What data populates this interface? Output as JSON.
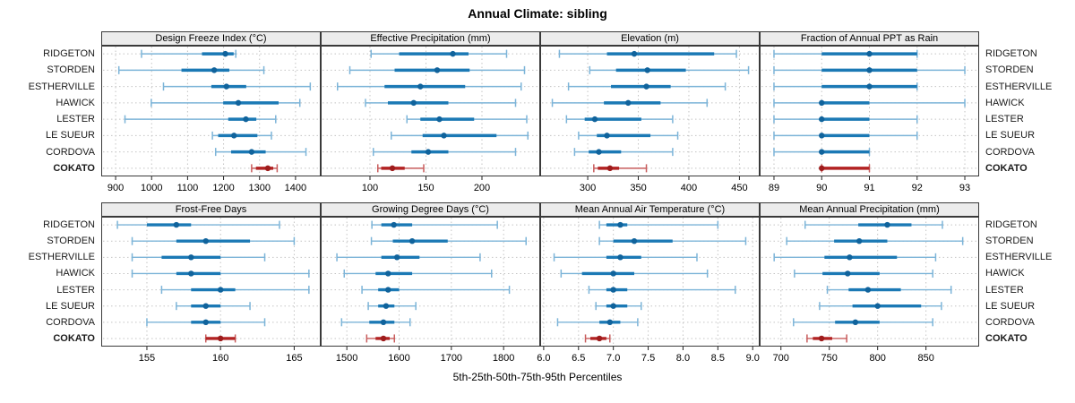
{
  "title": "Annual Climate: sibling",
  "caption": "5th-25th-50th-75th-95th Percentiles",
  "stations": [
    "RIDGETON",
    "STORDEN",
    "ESTHERVILLE",
    "HAWICK",
    "LESTER",
    "LE SUEUR",
    "CORDOVA",
    "COKATO"
  ],
  "highlight_station": "COKATO",
  "colors": {
    "blue_outer_line": "#7cb4d8",
    "blue_iqr_bar": "#1b79b5",
    "blue_median_dot": "#10639c",
    "red_outer_line": "#c85c5c",
    "red_iqr_bar": "#b22222",
    "red_median_dot": "#9e1c1c",
    "grid": "#c4c4c4",
    "panel_border": "#3a3a3a",
    "header_bg": "#ececec",
    "tick": "#222222"
  },
  "percentile_levels": [
    5,
    25,
    50,
    75,
    95
  ],
  "chart_data": [
    {
      "type": "dotplot-interval",
      "title": "Design Freeze Index (°C)",
      "grid_row": 0,
      "xlim": [
        860,
        1470
      ],
      "ticks": [
        900,
        1000,
        1100,
        1200,
        1300,
        1400
      ],
      "tick_labels": [
        "900",
        "1000",
        "1100",
        "1200",
        "1300",
        "1400"
      ],
      "series": [
        {
          "name": "RIDGETON",
          "values": [
            972,
            1140,
            1205,
            1228,
            1234
          ]
        },
        {
          "name": "STORDEN",
          "values": [
            909,
            1083,
            1174,
            1216,
            1312
          ]
        },
        {
          "name": "ESTHERVILLE",
          "values": [
            1033,
            1166,
            1208,
            1263,
            1441
          ]
        },
        {
          "name": "HAWICK",
          "values": [
            999,
            1199,
            1241,
            1353,
            1412
          ]
        },
        {
          "name": "LESTER",
          "values": [
            926,
            1213,
            1262,
            1291,
            1345
          ]
        },
        {
          "name": "LE SUEUR",
          "values": [
            1169,
            1185,
            1229,
            1294,
            1333
          ]
        },
        {
          "name": "CORDOVA",
          "values": [
            1178,
            1221,
            1278,
            1317,
            1429
          ]
        },
        {
          "name": "COKATO",
          "values": [
            1278,
            1290,
            1323,
            1338,
            1349
          ]
        }
      ]
    },
    {
      "type": "dotplot-interval",
      "title": "Effective Precipitation (mm)",
      "grid_row": 0,
      "xlim": [
        56,
        252
      ],
      "ticks": [
        100,
        150,
        200
      ],
      "tick_labels": [
        "100",
        "150",
        "200"
      ],
      "series": [
        {
          "name": "RIDGETON",
          "values": [
            101,
            126,
            174,
            188,
            222
          ]
        },
        {
          "name": "STORDEN",
          "values": [
            82,
            122,
            160,
            189,
            238
          ]
        },
        {
          "name": "ESTHERVILLE",
          "values": [
            71,
            113,
            145,
            185,
            235
          ]
        },
        {
          "name": "HAWICK",
          "values": [
            96,
            116,
            139,
            170,
            230
          ]
        },
        {
          "name": "LESTER",
          "values": [
            133,
            145,
            162,
            193,
            240
          ]
        },
        {
          "name": "LE SUEUR",
          "values": [
            119,
            147,
            166,
            213,
            241
          ]
        },
        {
          "name": "CORDOVA",
          "values": [
            103,
            137,
            152,
            170,
            230
          ]
        },
        {
          "name": "COKATO",
          "values": [
            107,
            110,
            120,
            131,
            148
          ]
        }
      ]
    },
    {
      "type": "dotplot-interval",
      "title": "Elevation (m)",
      "grid_row": 0,
      "xlim": [
        253,
        470
      ],
      "ticks": [
        300,
        350,
        400,
        450
      ],
      "tick_labels": [
        "300",
        "350",
        "400",
        "450"
      ],
      "series": [
        {
          "name": "RIDGETON",
          "values": [
            272,
            319,
            346,
            425,
            447
          ]
        },
        {
          "name": "STORDEN",
          "values": [
            302,
            328,
            359,
            397,
            459
          ]
        },
        {
          "name": "ESTHERVILLE",
          "values": [
            281,
            323,
            358,
            382,
            436
          ]
        },
        {
          "name": "HAWICK",
          "values": [
            265,
            316,
            340,
            372,
            418
          ]
        },
        {
          "name": "LESTER",
          "values": [
            279,
            297,
            307,
            353,
            384
          ]
        },
        {
          "name": "LE SUEUR",
          "values": [
            291,
            309,
            319,
            362,
            389
          ]
        },
        {
          "name": "CORDOVA",
          "values": [
            287,
            301,
            311,
            333,
            384
          ]
        },
        {
          "name": "COKATO",
          "values": [
            306,
            310,
            322,
            331,
            358
          ]
        }
      ]
    },
    {
      "type": "dotplot-interval",
      "title": "Fraction of Annual PPT as Rain",
      "grid_row": 0,
      "xlim": [
        88.7,
        93.3
      ],
      "ticks": [
        89,
        90,
        91,
        92,
        93
      ],
      "tick_labels": [
        "89",
        "90",
        "91",
        "92",
        "93"
      ],
      "series": [
        {
          "name": "RIDGETON",
          "values": [
            89,
            90,
            91,
            92,
            92
          ]
        },
        {
          "name": "STORDEN",
          "values": [
            89,
            90,
            91,
            92,
            93
          ]
        },
        {
          "name": "ESTHERVILLE",
          "values": [
            89,
            90,
            91,
            92,
            92
          ]
        },
        {
          "name": "HAWICK",
          "values": [
            89,
            90,
            90,
            91,
            93
          ]
        },
        {
          "name": "LESTER",
          "values": [
            89,
            90,
            90,
            91,
            92
          ]
        },
        {
          "name": "LE SUEUR",
          "values": [
            89,
            90,
            90,
            91,
            92
          ]
        },
        {
          "name": "CORDOVA",
          "values": [
            89,
            90,
            90,
            91,
            91
          ]
        },
        {
          "name": "COKATO",
          "values": [
            90,
            90,
            90,
            91,
            91
          ]
        }
      ]
    },
    {
      "type": "dotplot-interval",
      "title": "Frost-Free Days",
      "grid_row": 1,
      "xlim": [
        151.9,
        166.8
      ],
      "ticks": [
        155,
        160,
        165
      ],
      "tick_labels": [
        "155",
        "160",
        "165"
      ],
      "series": [
        {
          "name": "RIDGETON",
          "values": [
            153,
            155,
            157,
            158,
            164
          ]
        },
        {
          "name": "STORDEN",
          "values": [
            154,
            157,
            159,
            162,
            165
          ]
        },
        {
          "name": "ESTHERVILLE",
          "values": [
            154,
            156,
            158,
            160,
            163
          ]
        },
        {
          "name": "HAWICK",
          "values": [
            154,
            157,
            158,
            160,
            166
          ]
        },
        {
          "name": "LESTER",
          "values": [
            156,
            158,
            160,
            161,
            166
          ]
        },
        {
          "name": "LE SUEUR",
          "values": [
            157,
            158,
            159,
            160,
            162
          ]
        },
        {
          "name": "CORDOVA",
          "values": [
            155,
            158,
            159,
            160,
            163
          ]
        },
        {
          "name": "COKATO",
          "values": [
            159,
            159,
            160,
            161,
            161
          ]
        }
      ]
    },
    {
      "type": "dotplot-interval",
      "title": "Growing Degree Days (°C)",
      "grid_row": 1,
      "xlim": [
        1450,
        1870
      ],
      "ticks": [
        1500,
        1600,
        1700,
        1800
      ],
      "tick_labels": [
        "1500",
        "1600",
        "1700",
        "1800"
      ],
      "series": [
        {
          "name": "RIDGETON",
          "values": [
            1548,
            1566,
            1590,
            1625,
            1788
          ]
        },
        {
          "name": "STORDEN",
          "values": [
            1547,
            1588,
            1625,
            1693,
            1843
          ]
        },
        {
          "name": "ESTHERVILLE",
          "values": [
            1481,
            1566,
            1596,
            1639,
            1755
          ]
        },
        {
          "name": "HAWICK",
          "values": [
            1495,
            1555,
            1579,
            1625,
            1777
          ]
        },
        {
          "name": "LESTER",
          "values": [
            1529,
            1560,
            1579,
            1600,
            1811
          ]
        },
        {
          "name": "LE SUEUR",
          "values": [
            1541,
            1560,
            1575,
            1591,
            1632
          ]
        },
        {
          "name": "CORDOVA",
          "values": [
            1490,
            1543,
            1570,
            1591,
            1621
          ]
        },
        {
          "name": "COKATO",
          "values": [
            1538,
            1555,
            1570,
            1582,
            1591
          ]
        }
      ]
    },
    {
      "type": "dotplot-interval",
      "title": "Mean Annual Air Temperature (°C)",
      "grid_row": 1,
      "xlim": [
        5.95,
        9.1
      ],
      "ticks": [
        6.0,
        6.5,
        7.0,
        7.5,
        8.0,
        8.5,
        9.0
      ],
      "tick_labels": [
        "6.0",
        "6.5",
        "7.0",
        "7.5",
        "8.0",
        "8.5",
        "9.0"
      ],
      "series": [
        {
          "name": "RIDGETON",
          "values": [
            6.8,
            6.9,
            7.1,
            7.2,
            8.5
          ]
        },
        {
          "name": "STORDEN",
          "values": [
            6.8,
            7.0,
            7.3,
            7.85,
            8.9
          ]
        },
        {
          "name": "ESTHERVILLE",
          "values": [
            6.15,
            6.9,
            7.1,
            7.4,
            8.2
          ]
        },
        {
          "name": "HAWICK",
          "values": [
            6.25,
            6.55,
            7.0,
            7.3,
            8.35
          ]
        },
        {
          "name": "LESTER",
          "values": [
            6.65,
            6.9,
            7.0,
            7.2,
            8.75
          ]
        },
        {
          "name": "LE SUEUR",
          "values": [
            6.75,
            6.9,
            7.0,
            7.2,
            7.4
          ]
        },
        {
          "name": "CORDOVA",
          "values": [
            6.2,
            6.8,
            6.95,
            7.1,
            7.35
          ]
        },
        {
          "name": "COKATO",
          "values": [
            6.6,
            6.67,
            6.8,
            6.9,
            6.95
          ]
        }
      ]
    },
    {
      "type": "dotplot-interval",
      "title": "Mean Annual Precipitation (mm)",
      "grid_row": 1,
      "xlim": [
        678,
        905
      ],
      "ticks": [
        700,
        750,
        800,
        850
      ],
      "tick_labels": [
        "700",
        "750",
        "800",
        "850"
      ],
      "series": [
        {
          "name": "RIDGETON",
          "values": [
            725,
            780,
            810,
            835,
            867
          ]
        },
        {
          "name": "STORDEN",
          "values": [
            706,
            755,
            781,
            810,
            888
          ]
        },
        {
          "name": "ESTHERVILLE",
          "values": [
            693,
            745,
            771,
            820,
            860
          ]
        },
        {
          "name": "HAWICK",
          "values": [
            714,
            743,
            769,
            802,
            857
          ]
        },
        {
          "name": "LESTER",
          "values": [
            748,
            770,
            790,
            824,
            876
          ]
        },
        {
          "name": "LE SUEUR",
          "values": [
            740,
            774,
            800,
            845,
            866
          ]
        },
        {
          "name": "CORDOVA",
          "values": [
            713,
            756,
            777,
            802,
            857
          ]
        },
        {
          "name": "COKATO",
          "values": [
            727,
            733,
            742,
            753,
            768
          ]
        }
      ]
    }
  ]
}
